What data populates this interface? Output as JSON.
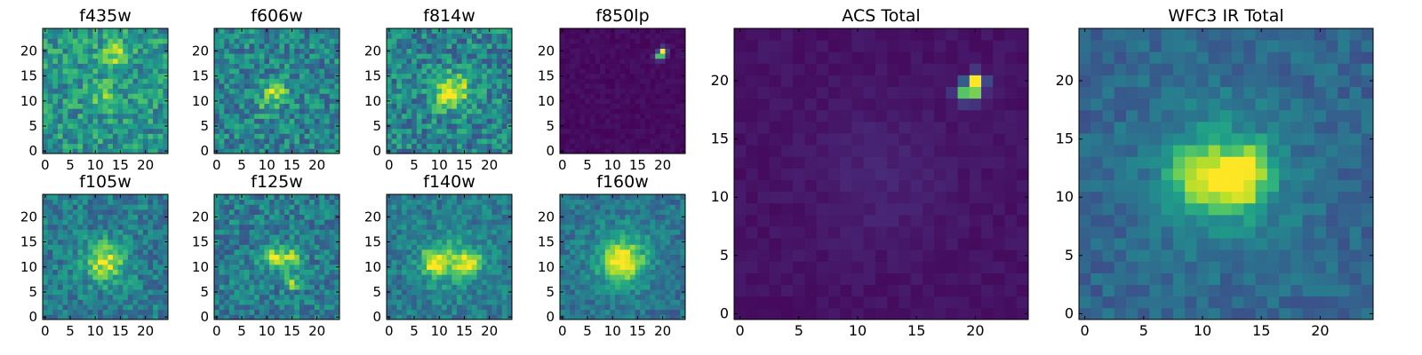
{
  "figure": {
    "colormap": [
      "#440154",
      "#482878",
      "#3e4a89",
      "#31688e",
      "#26828e",
      "#1f9e89",
      "#35b779",
      "#6ece58",
      "#b5de2b",
      "#fde725"
    ],
    "frame_color": "#000000"
  },
  "chart_data": [
    {
      "type": "heatmap",
      "title": "f435w",
      "x_ticks": [
        0,
        5,
        10,
        15,
        20
      ],
      "y_ticks": [
        0,
        5,
        10,
        15,
        20
      ],
      "xlim": [
        -0.5,
        24.5
      ],
      "ylim": [
        -0.5,
        24.5
      ],
      "grid": false,
      "colormap": "viridis",
      "field": {
        "grid_size": 25,
        "noise_mean": 0.52,
        "noise_amp": 0.4,
        "sources": [
          [
            14,
            19,
            2.0,
            0.35
          ],
          [
            12,
            11,
            2.0,
            0.2
          ]
        ],
        "seed": 11
      }
    },
    {
      "type": "heatmap",
      "title": "f606w",
      "x_ticks": [
        0,
        5,
        10,
        15,
        20
      ],
      "y_ticks": [
        0,
        5,
        10,
        15,
        20
      ],
      "xlim": [
        -0.5,
        24.5
      ],
      "ylim": [
        -0.5,
        24.5
      ],
      "grid": false,
      "colormap": "viridis",
      "field": {
        "grid_size": 25,
        "noise_mean": 0.45,
        "noise_amp": 0.4,
        "sources": [
          [
            12,
            12,
            1.6,
            0.4
          ],
          [
            10,
            10,
            2.0,
            0.15
          ]
        ],
        "seed": 23
      }
    },
    {
      "type": "heatmap",
      "title": "f814w",
      "x_ticks": [
        0,
        5,
        10,
        15,
        20
      ],
      "y_ticks": [
        0,
        5,
        10,
        15,
        20
      ],
      "xlim": [
        -0.5,
        24.5
      ],
      "ylim": [
        -0.5,
        24.5
      ],
      "grid": false,
      "colormap": "viridis",
      "field": {
        "grid_size": 25,
        "noise_mean": 0.45,
        "noise_amp": 0.42,
        "sources": [
          [
            13,
            12,
            2.5,
            0.45
          ],
          [
            11,
            11,
            1.5,
            0.25
          ]
        ],
        "seed": 37
      }
    },
    {
      "type": "heatmap",
      "title": "f850lp",
      "x_ticks": [
        0,
        5,
        10,
        15,
        20
      ],
      "y_ticks": [
        0,
        5,
        10,
        15,
        20
      ],
      "xlim": [
        -0.5,
        24.5
      ],
      "ylim": [
        -0.5,
        24.5
      ],
      "grid": false,
      "colormap": "viridis",
      "field": {
        "grid_size": 25,
        "noise_mean": 0.03,
        "noise_amp": 0.05,
        "sources": [
          [
            20,
            20,
            0.5,
            0.97
          ],
          [
            19,
            19,
            0.5,
            0.6
          ],
          [
            20,
            19,
            0.5,
            0.45
          ]
        ],
        "seed": 41
      }
    },
    {
      "type": "heatmap",
      "title": "f105w",
      "x_ticks": [
        0,
        5,
        10,
        15,
        20
      ],
      "y_ticks": [
        0,
        5,
        10,
        15,
        20
      ],
      "xlim": [
        -0.5,
        24.5
      ],
      "ylim": [
        -0.5,
        24.5
      ],
      "grid": false,
      "colormap": "viridis",
      "field": {
        "grid_size": 25,
        "noise_mean": 0.42,
        "noise_amp": 0.32,
        "sources": [
          [
            12,
            11,
            2.8,
            0.5
          ]
        ],
        "seed": 53
      }
    },
    {
      "type": "heatmap",
      "title": "f125w",
      "x_ticks": [
        0,
        5,
        10,
        15,
        20
      ],
      "y_ticks": [
        0,
        5,
        10,
        15,
        20
      ],
      "xlim": [
        -0.5,
        24.5
      ],
      "ylim": [
        -0.5,
        24.5
      ],
      "grid": false,
      "colormap": "viridis",
      "field": {
        "grid_size": 25,
        "noise_mean": 0.42,
        "noise_amp": 0.34,
        "sources": [
          [
            11,
            12,
            1.6,
            0.45
          ],
          [
            15,
            12,
            1.6,
            0.4
          ],
          [
            15,
            7,
            1.0,
            0.45
          ]
        ],
        "seed": 67
      }
    },
    {
      "type": "heatmap",
      "title": "f140w",
      "x_ticks": [
        0,
        5,
        10,
        15,
        20
      ],
      "y_ticks": [
        0,
        5,
        10,
        15,
        20
      ],
      "xlim": [
        -0.5,
        24.5
      ],
      "ylim": [
        -0.5,
        24.5
      ],
      "grid": false,
      "colormap": "viridis",
      "field": {
        "grid_size": 25,
        "noise_mean": 0.42,
        "noise_amp": 0.28,
        "sources": [
          [
            9,
            11,
            1.8,
            0.45
          ],
          [
            16,
            11,
            1.8,
            0.45
          ],
          [
            12,
            11,
            3.5,
            0.25
          ]
        ],
        "seed": 79
      }
    },
    {
      "type": "heatmap",
      "title": "f160w",
      "x_ticks": [
        0,
        5,
        10,
        15,
        20
      ],
      "y_ticks": [
        0,
        5,
        10,
        15,
        20
      ],
      "xlim": [
        -0.5,
        24.5
      ],
      "ylim": [
        -0.5,
        24.5
      ],
      "grid": false,
      "colormap": "viridis",
      "field": {
        "grid_size": 25,
        "noise_mean": 0.38,
        "noise_amp": 0.25,
        "sources": [
          [
            12,
            11,
            2.5,
            0.55
          ],
          [
            12,
            12,
            5.0,
            0.2
          ]
        ],
        "seed": 83
      }
    },
    {
      "type": "heatmap",
      "title": "ACS Total",
      "x_ticks": [
        0,
        5,
        10,
        15,
        20
      ],
      "y_ticks": [
        0,
        5,
        10,
        15,
        20
      ],
      "xlim": [
        -0.5,
        24.5
      ],
      "ylim": [
        -0.5,
        24.5
      ],
      "grid": false,
      "colormap": "viridis",
      "field": {
        "grid_size": 25,
        "noise_mean": 0.05,
        "noise_amp": 0.05,
        "sources": [
          [
            20,
            20,
            0.5,
            0.95
          ],
          [
            19,
            19,
            0.5,
            0.6
          ],
          [
            20,
            19,
            0.5,
            0.55
          ],
          [
            12,
            12,
            4.0,
            0.05
          ]
        ],
        "seed": 97
      }
    },
    {
      "type": "heatmap",
      "title": "WFC3 IR Total",
      "x_ticks": [
        0,
        5,
        10,
        15,
        20
      ],
      "y_ticks": [
        0,
        5,
        10,
        15,
        20
      ],
      "xlim": [
        -0.5,
        24.5
      ],
      "ylim": [
        -0.5,
        24.5
      ],
      "grid": false,
      "colormap": "viridis",
      "field": {
        "grid_size": 25,
        "noise_mean": 0.33,
        "noise_amp": 0.18,
        "sources": [
          [
            10,
            12,
            1.8,
            0.45
          ],
          [
            13,
            11,
            1.6,
            0.45
          ],
          [
            14,
            13,
            1.3,
            0.3
          ],
          [
            12,
            12,
            4.5,
            0.2
          ]
        ],
        "seed": 101
      }
    }
  ]
}
